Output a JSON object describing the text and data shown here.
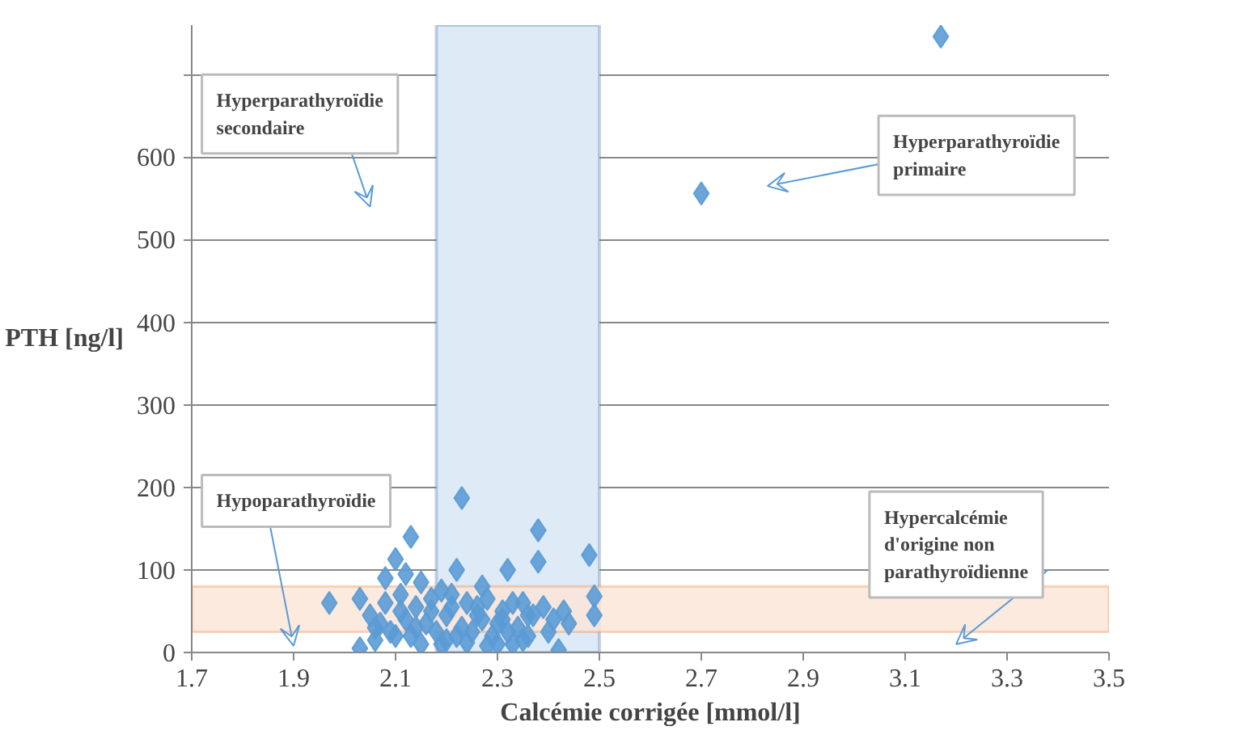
{
  "chart_data": {
    "type": "scatter",
    "xlabel": "Calcémie corrigée [mmol/l]",
    "ylabel": "PTH [ng/l]",
    "xlim": [
      1.7,
      3.5
    ],
    "ylim": [
      0,
      760
    ],
    "xticks": [
      {
        "value": 1.7,
        "label": "1.7"
      },
      {
        "value": 1.9,
        "label": "1.9"
      },
      {
        "value": 2.1,
        "label": "2.1"
      },
      {
        "value": 2.3,
        "label": "2.3"
      },
      {
        "value": 2.5,
        "label": "2.5"
      },
      {
        "value": 2.7,
        "label": "2.7"
      },
      {
        "value": 2.9,
        "label": "2.9"
      },
      {
        "value": 3.1,
        "label": "3.1"
      },
      {
        "value": 3.3,
        "label": "3.3"
      },
      {
        "value": 3.5,
        "label": "3.5"
      }
    ],
    "yticks": [
      0,
      100,
      200,
      300,
      400,
      500,
      600,
      {
        "value": 700,
        "label": null
      }
    ],
    "grid": "y",
    "marker": "diamond",
    "series": [
      {
        "color": "#5b9bd5",
        "x": [
          3.17,
          2.7,
          2.23,
          2.38,
          2.13,
          2.48,
          2.1,
          2.38,
          2.32,
          2.22,
          2.12,
          2.08,
          2.15,
          2.27,
          1.97,
          2.03,
          2.49,
          2.49,
          2.03,
          2.42,
          2.06,
          2.1,
          2.2,
          2.3,
          2.35,
          2.05,
          2.08,
          2.11,
          2.14,
          2.17,
          2.19,
          2.21,
          2.24,
          2.26,
          2.28,
          2.31,
          2.33,
          2.36,
          2.39,
          2.41,
          2.44,
          2.07,
          2.12,
          2.16,
          2.2,
          2.23,
          2.27,
          2.3,
          2.34,
          2.37,
          2.4,
          2.09,
          2.13,
          2.18,
          2.22,
          2.25,
          2.29,
          2.32,
          2.36,
          2.15,
          2.19,
          2.24,
          2.28,
          2.33,
          2.11,
          2.17,
          2.21,
          2.26,
          2.31,
          2.06,
          2.43,
          2.14,
          2.35
        ],
        "values": [
          746,
          556,
          187,
          148,
          140,
          118,
          113,
          110,
          100,
          100,
          95,
          90,
          85,
          80,
          60,
          65,
          68,
          45,
          5,
          3,
          15,
          20,
          15,
          10,
          15,
          45,
          60,
          70,
          55,
          65,
          75,
          70,
          60,
          55,
          65,
          50,
          60,
          45,
          55,
          40,
          35,
          35,
          40,
          35,
          45,
          30,
          40,
          35,
          30,
          45,
          25,
          25,
          20,
          25,
          20,
          25,
          20,
          25,
          20,
          10,
          10,
          12,
          8,
          10,
          50,
          50,
          55,
          45,
          40,
          30,
          50,
          30,
          60
        ]
      }
    ],
    "bands": [
      {
        "axis": "x",
        "from": 2.18,
        "to": 2.5,
        "color": "#deebf7"
      },
      {
        "axis": "y",
        "from": 25,
        "to": 80,
        "color": "#fbe5d6"
      }
    ],
    "annotations": [
      "Hyperparathyroïdie\nsecondaire",
      "Hyperparathyroïdie\nprimaire",
      "Hypoparathyroïdie",
      "Hypercalcémie\nd'origine non\nparathyroïdienne"
    ]
  }
}
